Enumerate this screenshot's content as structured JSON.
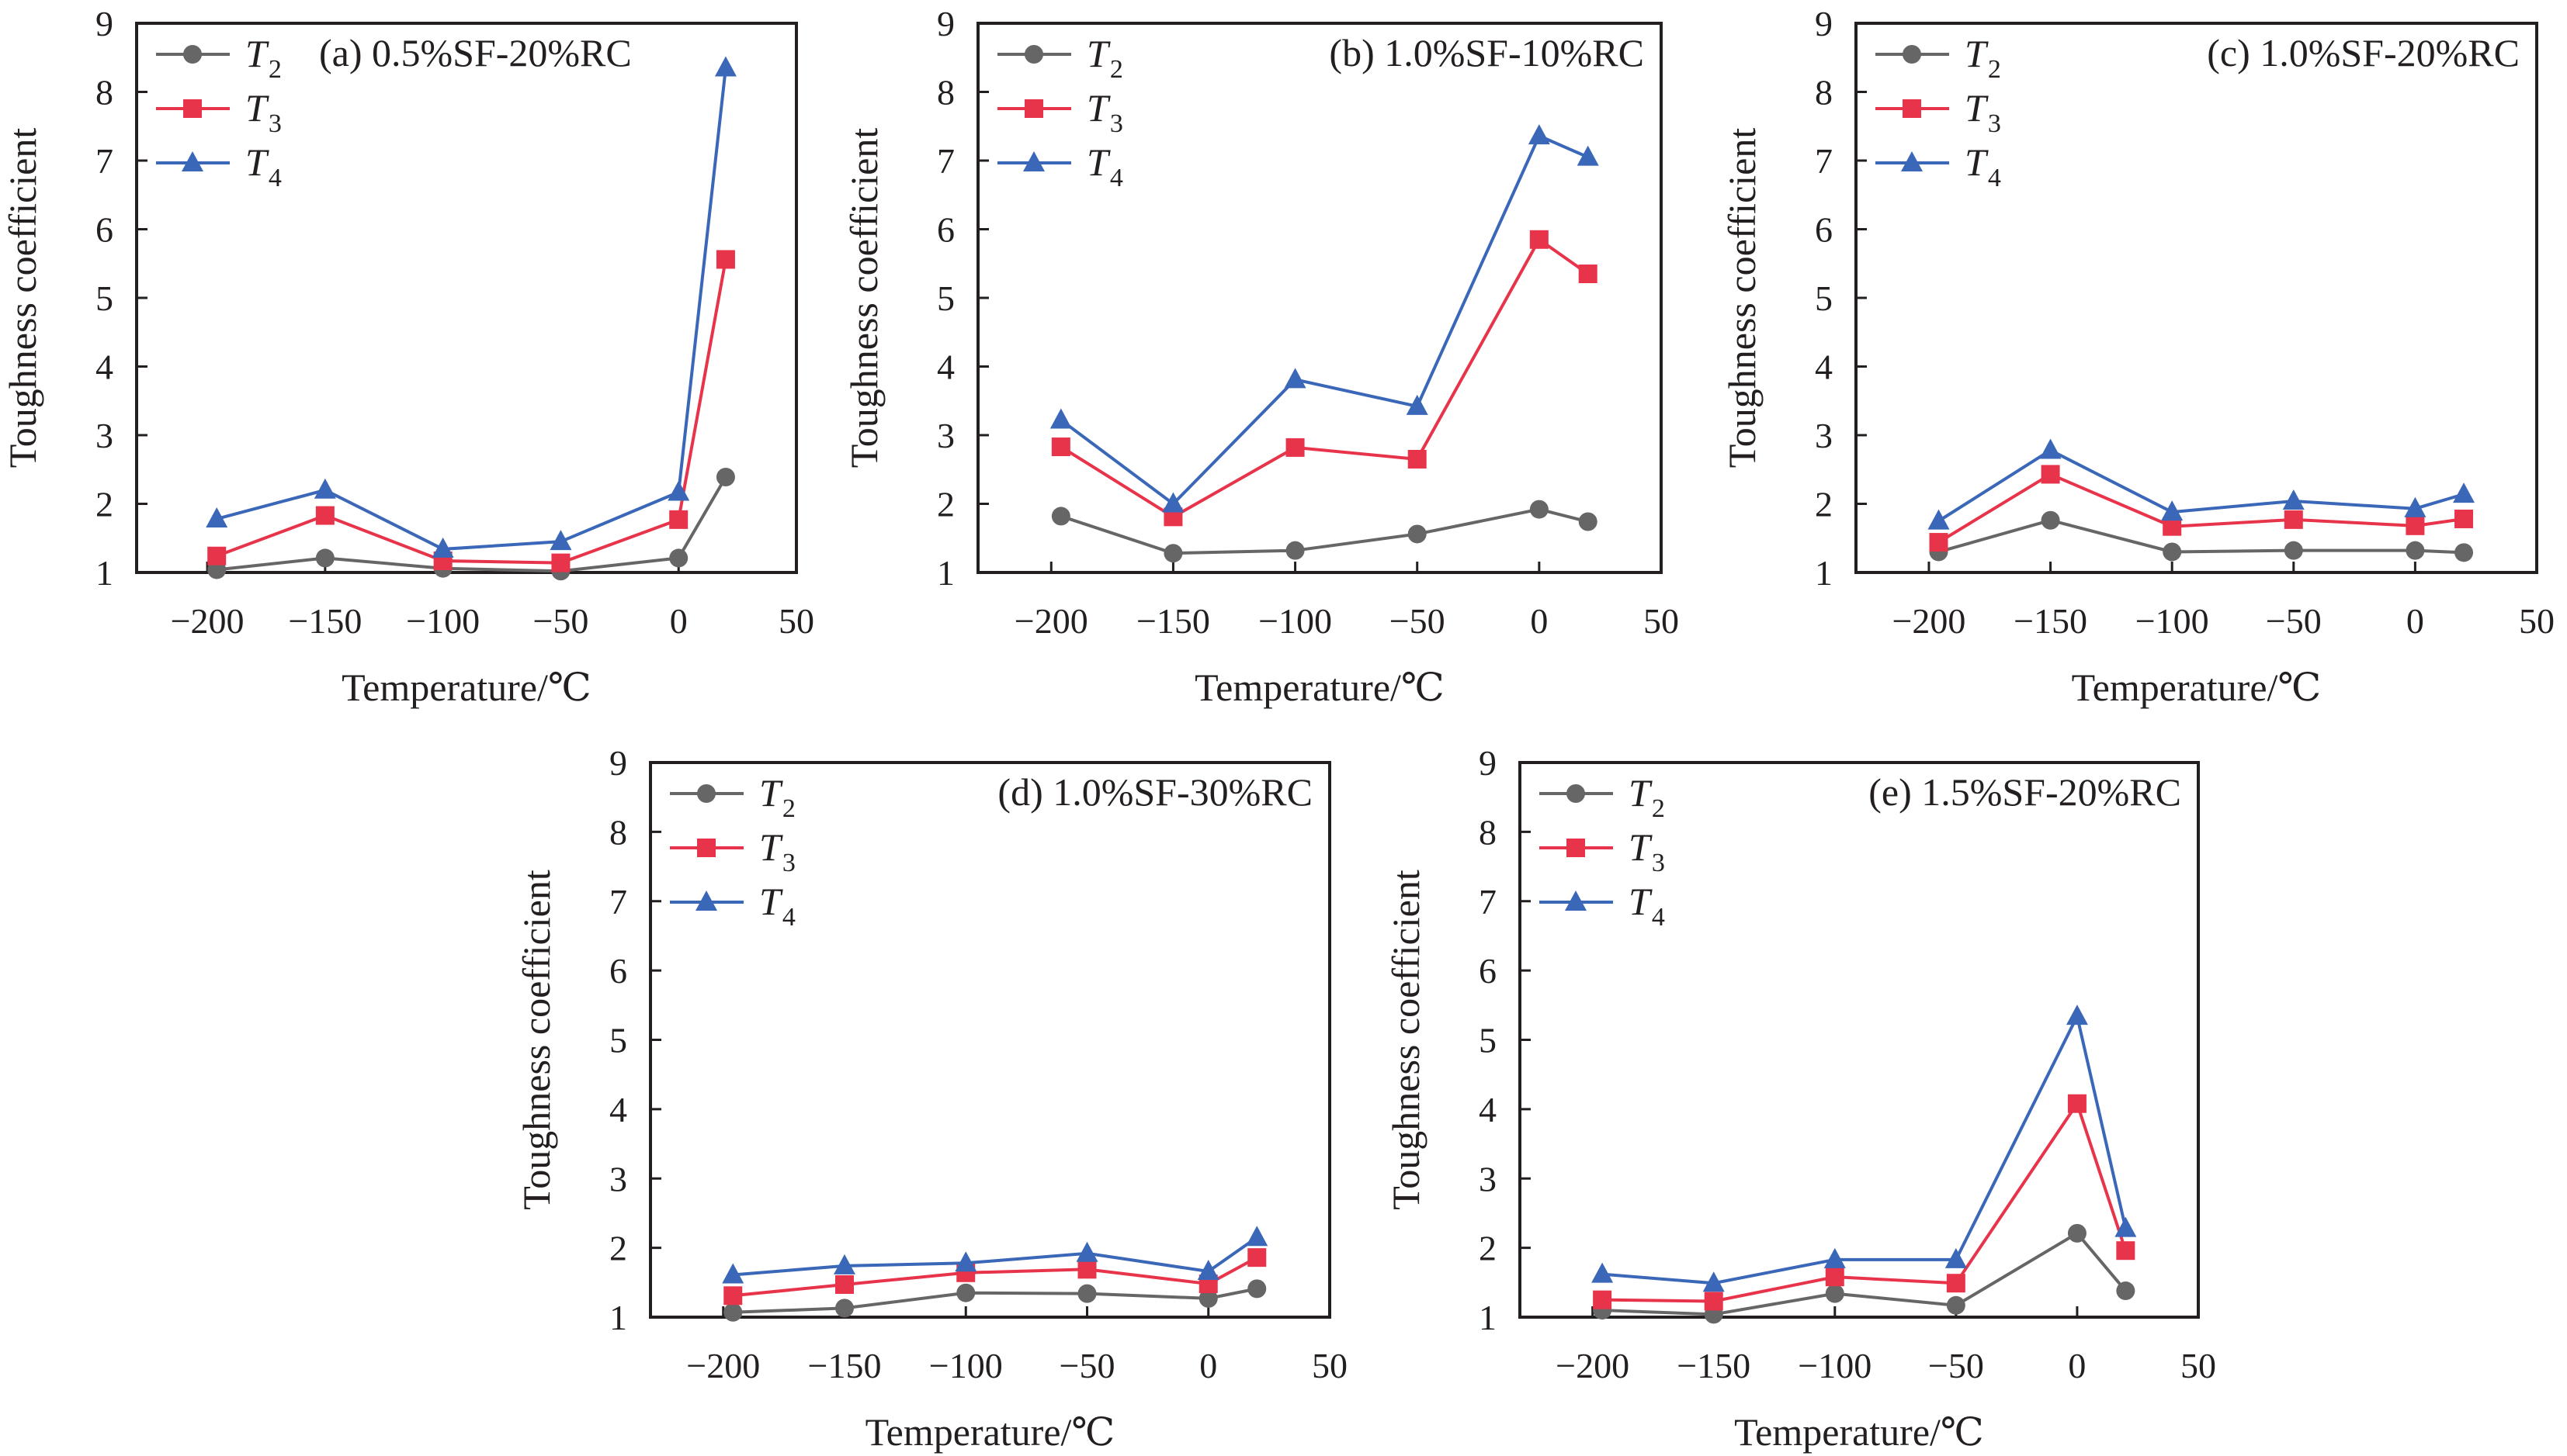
{
  "chart_data": [
    {
      "type": "line",
      "title": "(a) 0.5%SF-20%RC",
      "xlabel": "Temperature/℃",
      "ylabel": "Toughness coefficient",
      "xlim": [
        -230,
        50
      ],
      "ylim": [
        1,
        9
      ],
      "xticks": [
        -200,
        -150,
        -100,
        -50,
        0,
        50
      ],
      "yticks": [
        1,
        2,
        3,
        4,
        5,
        6,
        7,
        8,
        9
      ],
      "x": [
        -196,
        -150,
        -100,
        -50,
        0,
        20
      ],
      "legend_position": "top-left",
      "grid": false,
      "series": [
        {
          "name": "T2",
          "base": "T",
          "sub": "2",
          "marker": "circle",
          "color": "#666666",
          "values": [
            1.04,
            1.21,
            1.06,
            1.02,
            1.21,
            2.39
          ]
        },
        {
          "name": "T3",
          "base": "T",
          "sub": "3",
          "marker": "square",
          "color": "#e8344a",
          "values": [
            1.24,
            1.83,
            1.17,
            1.14,
            1.77,
            5.56
          ]
        },
        {
          "name": "T4",
          "base": "T",
          "sub": "4",
          "marker": "triangle",
          "color": "#3a67b8",
          "values": [
            1.78,
            2.2,
            1.34,
            1.45,
            2.17,
            8.35
          ]
        }
      ]
    },
    {
      "type": "line",
      "title": "(b) 1.0%SF-10%RC",
      "xlabel": "Temperature/℃",
      "ylabel": "Toughness coefficient",
      "xlim": [
        -230,
        50
      ],
      "ylim": [
        1,
        9
      ],
      "xticks": [
        -200,
        -150,
        -100,
        -50,
        0,
        50
      ],
      "yticks": [
        1,
        2,
        3,
        4,
        5,
        6,
        7,
        8,
        9
      ],
      "x": [
        -196,
        -150,
        -100,
        -50,
        0,
        20
      ],
      "legend_position": "top-left",
      "grid": false,
      "series": [
        {
          "name": "T2",
          "base": "T",
          "sub": "2",
          "marker": "circle",
          "color": "#666666",
          "values": [
            1.82,
            1.28,
            1.32,
            1.56,
            1.92,
            1.74
          ]
        },
        {
          "name": "T3",
          "base": "T",
          "sub": "3",
          "marker": "square",
          "color": "#e8344a",
          "values": [
            2.83,
            1.81,
            2.82,
            2.65,
            5.85,
            5.35
          ]
        },
        {
          "name": "T4",
          "base": "T",
          "sub": "4",
          "marker": "triangle",
          "color": "#3a67b8",
          "values": [
            3.22,
            2.0,
            3.81,
            3.42,
            7.36,
            7.05
          ]
        }
      ]
    },
    {
      "type": "line",
      "title": "(c) 1.0%SF-20%RC",
      "xlabel": "Temperature/℃",
      "ylabel": "Toughness coefficient",
      "xlim": [
        -230,
        50
      ],
      "ylim": [
        1,
        9
      ],
      "xticks": [
        -200,
        -150,
        -100,
        -50,
        0,
        50
      ],
      "yticks": [
        1,
        2,
        3,
        4,
        5,
        6,
        7,
        8,
        9
      ],
      "x": [
        -196,
        -150,
        -100,
        -50,
        0,
        20
      ],
      "legend_position": "top-left",
      "grid": false,
      "series": [
        {
          "name": "T2",
          "base": "T",
          "sub": "2",
          "marker": "circle",
          "color": "#666666",
          "values": [
            1.3,
            1.76,
            1.3,
            1.32,
            1.32,
            1.29
          ]
        },
        {
          "name": "T3",
          "base": "T",
          "sub": "3",
          "marker": "square",
          "color": "#e8344a",
          "values": [
            1.44,
            2.43,
            1.67,
            1.77,
            1.68,
            1.78
          ]
        },
        {
          "name": "T4",
          "base": "T",
          "sub": "4",
          "marker": "triangle",
          "color": "#3a67b8",
          "values": [
            1.75,
            2.78,
            1.88,
            2.04,
            1.93,
            2.14
          ]
        }
      ]
    },
    {
      "type": "line",
      "title": "(d) 1.0%SF-30%RC",
      "xlabel": "Temperature/℃",
      "ylabel": "Toughness coefficient",
      "xlim": [
        -230,
        50
      ],
      "ylim": [
        1,
        9
      ],
      "xticks": [
        -200,
        -150,
        -100,
        -50,
        0,
        50
      ],
      "yticks": [
        1,
        2,
        3,
        4,
        5,
        6,
        7,
        8,
        9
      ],
      "x": [
        -196,
        -150,
        -100,
        -50,
        0,
        20
      ],
      "legend_position": "top-left",
      "grid": false,
      "series": [
        {
          "name": "T2",
          "base": "T",
          "sub": "2",
          "marker": "circle",
          "color": "#666666",
          "values": [
            1.07,
            1.13,
            1.35,
            1.34,
            1.27,
            1.41
          ]
        },
        {
          "name": "T3",
          "base": "T",
          "sub": "3",
          "marker": "square",
          "color": "#e8344a",
          "values": [
            1.31,
            1.47,
            1.64,
            1.69,
            1.48,
            1.86
          ]
        },
        {
          "name": "T4",
          "base": "T",
          "sub": "4",
          "marker": "triangle",
          "color": "#3a67b8",
          "values": [
            1.61,
            1.74,
            1.78,
            1.92,
            1.66,
            2.15
          ]
        }
      ]
    },
    {
      "type": "line",
      "title": "(e) 1.5%SF-20%RC",
      "xlabel": "Temperature/℃",
      "ylabel": "Toughness coefficient",
      "xlim": [
        -230,
        50
      ],
      "ylim": [
        1,
        9
      ],
      "xticks": [
        -200,
        -150,
        -100,
        -50,
        0,
        50
      ],
      "yticks": [
        1,
        2,
        3,
        4,
        5,
        6,
        7,
        8,
        9
      ],
      "x": [
        -196,
        -150,
        -100,
        -50,
        0,
        20
      ],
      "legend_position": "top-left",
      "grid": false,
      "series": [
        {
          "name": "T2",
          "base": "T",
          "sub": "2",
          "marker": "circle",
          "color": "#666666",
          "values": [
            1.1,
            1.04,
            1.34,
            1.17,
            2.21,
            1.38
          ]
        },
        {
          "name": "T3",
          "base": "T",
          "sub": "3",
          "marker": "square",
          "color": "#e8344a",
          "values": [
            1.25,
            1.23,
            1.58,
            1.49,
            4.08,
            1.96
          ]
        },
        {
          "name": "T4",
          "base": "T",
          "sub": "4",
          "marker": "triangle",
          "color": "#3a67b8",
          "values": [
            1.62,
            1.49,
            1.83,
            1.83,
            5.34,
            2.28
          ]
        }
      ]
    }
  ]
}
